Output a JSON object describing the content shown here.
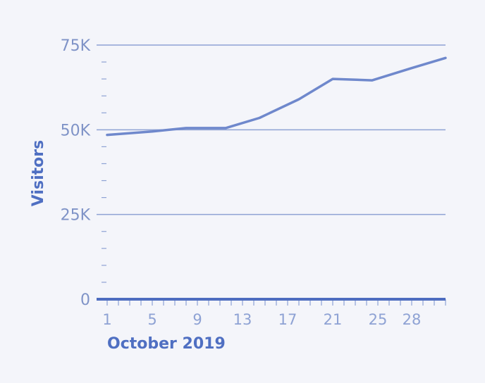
{
  "chart_data": {
    "type": "line",
    "title": "",
    "xlabel": "October 2019",
    "ylabel": "Visitors",
    "xlim": [
      1,
      31
    ],
    "ylim": [
      0,
      75000
    ],
    "grid": true,
    "y_ticks": [
      {
        "value": 0,
        "label": "0"
      },
      {
        "value": 25000,
        "label": "25K"
      },
      {
        "value": 50000,
        "label": "50K"
      },
      {
        "value": 75000,
        "label": "75K"
      }
    ],
    "x_ticks": [
      {
        "value": 1,
        "label": "1"
      },
      {
        "value": 5,
        "label": "5"
      },
      {
        "value": 9,
        "label": "9"
      },
      {
        "value": 13,
        "label": "13"
      },
      {
        "value": 17,
        "label": "17"
      },
      {
        "value": 21,
        "label": "21"
      },
      {
        "value": 25,
        "label": "25"
      },
      {
        "value": 28,
        "label": "28"
      }
    ],
    "series": [
      {
        "name": "Visitors",
        "color": "#6f88cc",
        "x": [
          1,
          5,
          8,
          11.5,
          14.5,
          18,
          21,
          24.5,
          28,
          31
        ],
        "values": [
          48500,
          49500,
          50500,
          50500,
          53500,
          59000,
          65000,
          64600,
          68200,
          71200
        ]
      }
    ]
  },
  "colors": {
    "background": "#f4f5fa",
    "gridline": "#8ea2d4",
    "baseline": "#4e6cc0",
    "line": "#6f88cc",
    "tick_label": "#7f93c7",
    "axis_title": "#4f6fc2"
  }
}
